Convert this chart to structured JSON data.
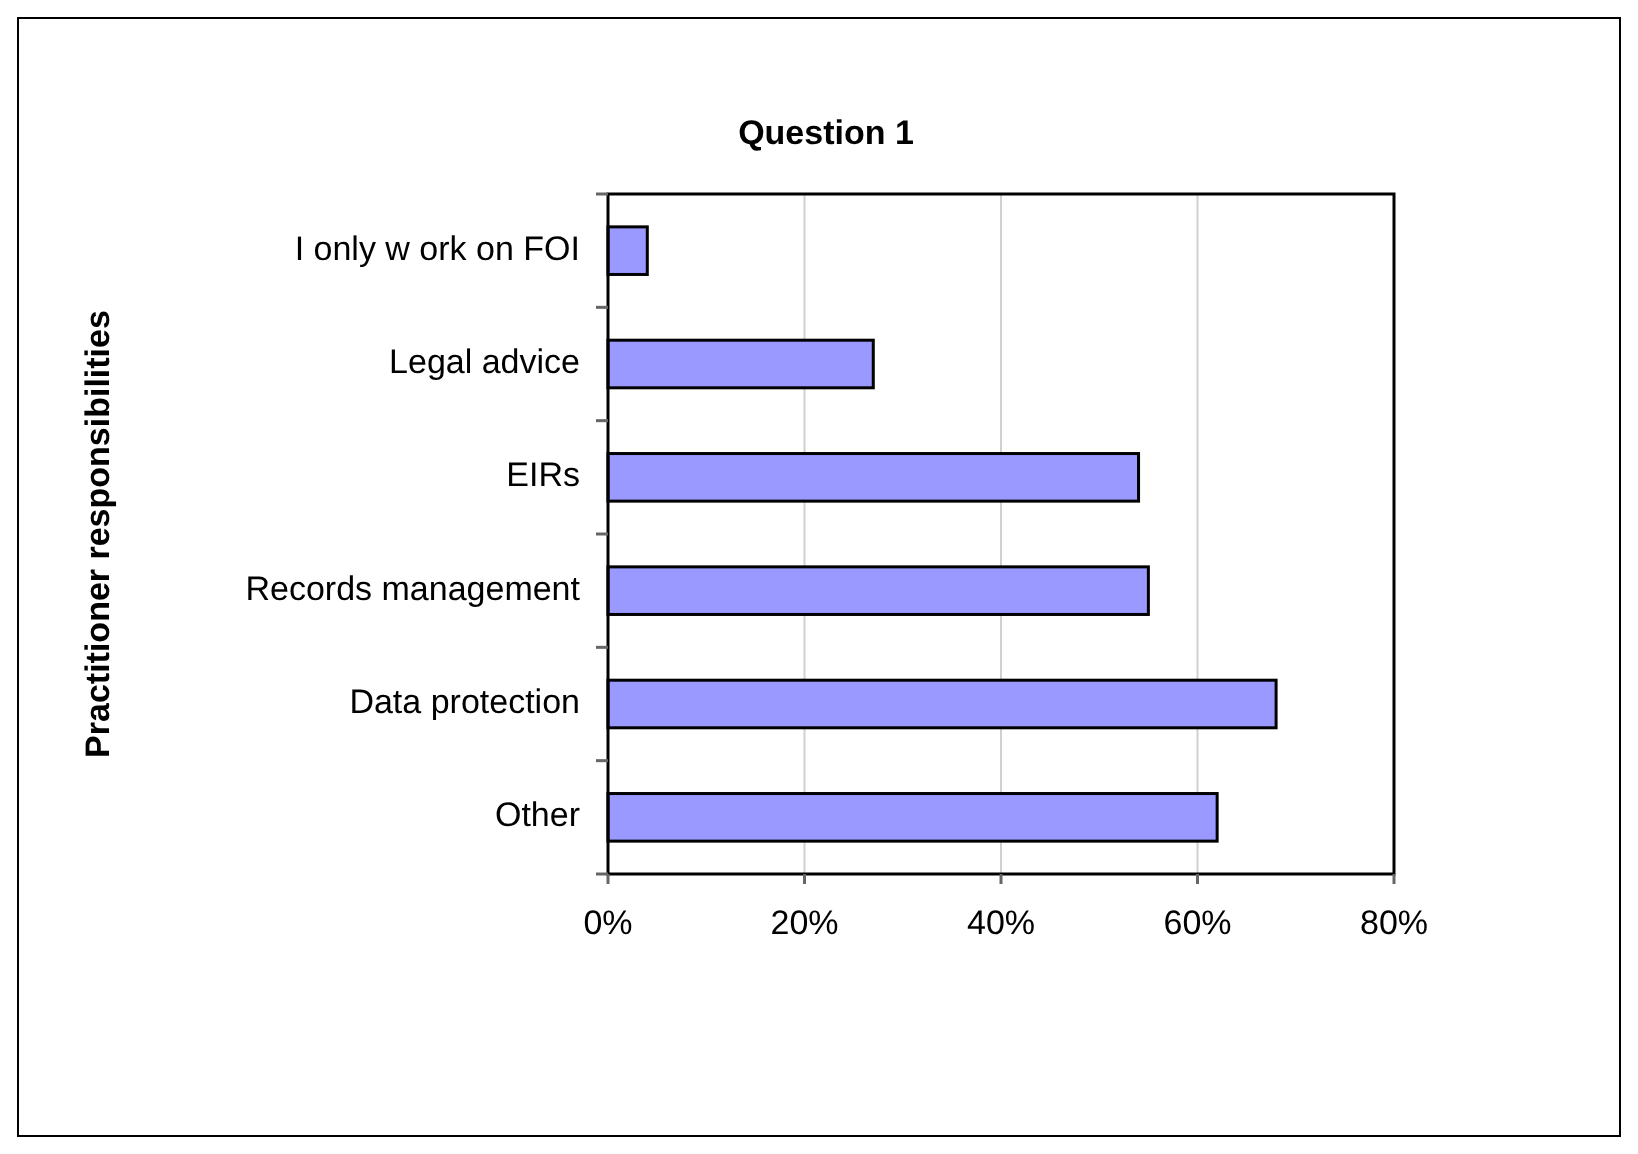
{
  "chart_data": {
    "type": "bar",
    "orientation": "horizontal",
    "title": "Question 1",
    "ylabel": "Practitioner responsibilities",
    "categories": [
      "I only w ork on FOI",
      "Legal advice",
      "EIRs",
      "Records management",
      "Data protection",
      "Other"
    ],
    "values": [
      4,
      27,
      54,
      55,
      68,
      62
    ],
    "color": "#9999ff",
    "xlim": [
      0,
      80
    ],
    "xticks": [
      {
        "value": 0,
        "label": "0%"
      },
      {
        "value": 20,
        "label": "20%"
      },
      {
        "value": 40,
        "label": "40%"
      },
      {
        "value": 60,
        "label": "60%"
      },
      {
        "value": 80,
        "label": "80%"
      }
    ],
    "grid": "x"
  }
}
